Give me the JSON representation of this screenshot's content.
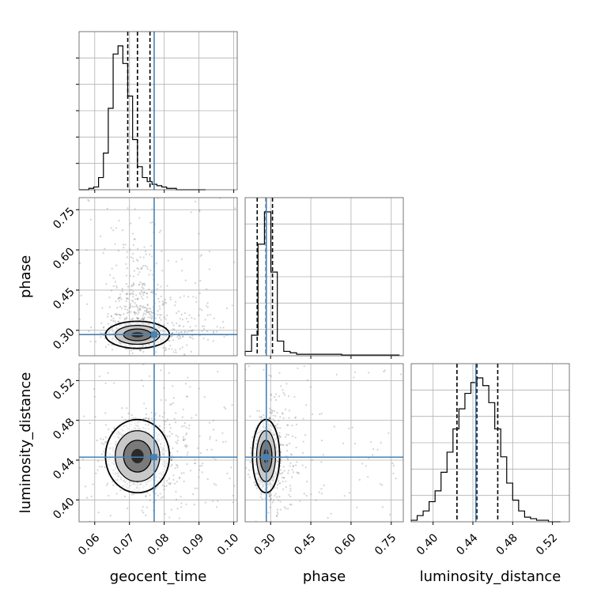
{
  "chart_data": {
    "type": "corner",
    "parameters": [
      {
        "key": "geocent_time",
        "label": "geocent_time",
        "range": [
          0.0555,
          0.101
        ],
        "ticks": [
          0.06,
          0.07,
          0.08,
          0.09,
          0.1
        ],
        "tick_labels": [
          "0.06",
          "0.07",
          "0.08",
          "0.09",
          "0.10"
        ],
        "truth": 0.0771,
        "quantiles": [
          0.0695,
          0.0723,
          0.0759
        ],
        "hist_bins": [
          0.0555,
          0.0569,
          0.0583,
          0.0597,
          0.0611,
          0.0625,
          0.0639,
          0.0653,
          0.0667,
          0.0681,
          0.0695,
          0.0709,
          0.0723,
          0.0737,
          0.0751,
          0.0765,
          0.0779,
          0.0793,
          0.0807,
          0.0821,
          0.0835,
          0.0849,
          0.0863,
          0.0877,
          0.0891,
          0.0905,
          0.0919
        ],
        "hist_counts": [
          0,
          0,
          1,
          2,
          9,
          27,
          60,
          100,
          106,
          93,
          69,
          37,
          17,
          9,
          6,
          4,
          3,
          2,
          1,
          1,
          0,
          0,
          0,
          0,
          0,
          0
        ]
      },
      {
        "key": "phase",
        "label": "phase",
        "range": [
          0.205,
          0.795
        ],
        "ticks": [
          0.3,
          0.45,
          0.6,
          0.75
        ],
        "tick_labels": [
          "0.30",
          "0.45",
          "0.60",
          "0.75"
        ],
        "truth": 0.284,
        "quantiles": [
          0.25,
          0.283,
          0.307
        ],
        "hist_bins": [
          0.205,
          0.229,
          0.253,
          0.277,
          0.301,
          0.325,
          0.349,
          0.373,
          0.397,
          0.421,
          0.445,
          0.469,
          0.493,
          0.517,
          0.541,
          0.565,
          0.589,
          0.613,
          0.637,
          0.661,
          0.685,
          0.709,
          0.733,
          0.757,
          0.781
        ],
        "hist_counts": [
          3,
          14,
          76,
          98,
          57,
          10,
          3,
          2,
          1,
          1,
          1,
          1,
          1,
          1,
          1,
          0.5,
          0.5,
          0.5,
          0.5,
          0.5,
          0.5,
          0.5,
          0.5,
          0.5
        ]
      },
      {
        "key": "luminosity_distance",
        "label": "luminosity_distance",
        "range": [
          0.378,
          0.537
        ],
        "ticks": [
          0.4,
          0.44,
          0.48,
          0.52
        ],
        "tick_labels": [
          "0.40",
          "0.44",
          "0.48",
          "0.52"
        ],
        "truth": 0.443,
        "quantiles": [
          0.424,
          0.444,
          0.465
        ],
        "hist_bins": [
          0.378,
          0.384,
          0.39,
          0.396,
          0.402,
          0.408,
          0.414,
          0.42,
          0.426,
          0.432,
          0.438,
          0.444,
          0.45,
          0.456,
          0.462,
          0.468,
          0.474,
          0.48,
          0.486,
          0.492,
          0.498,
          0.504,
          0.51,
          0.516,
          0.522,
          0.528
        ],
        "hist_counts": [
          1,
          4,
          7,
          13,
          20,
          32,
          45,
          60,
          73,
          83,
          90,
          93,
          88,
          77,
          60,
          42,
          25,
          14,
          7,
          3,
          2,
          1,
          1,
          0,
          0
        ]
      }
    ],
    "y_ticks": {
      "phase": {
        "ticks": [
          0.3,
          0.45,
          0.6,
          0.75
        ],
        "tick_labels": [
          "0.30",
          "0.45",
          "0.60",
          "0.75"
        ]
      },
      "luminosity_distance": {
        "ticks": [
          0.4,
          0.44,
          0.48,
          0.52
        ],
        "tick_labels": [
          "0.40",
          "0.44",
          "0.48",
          "0.52"
        ]
      }
    },
    "colors": {
      "truth": "#4682b4",
      "hist": "#000000",
      "quantile": "#000000",
      "grid": "#b0b0b0",
      "scatter": "#808080",
      "contour_fill": [
        "#ffffff",
        "#c8c8c8",
        "#7a7a7a",
        "#2a2a2a"
      ]
    },
    "grid": true
  }
}
